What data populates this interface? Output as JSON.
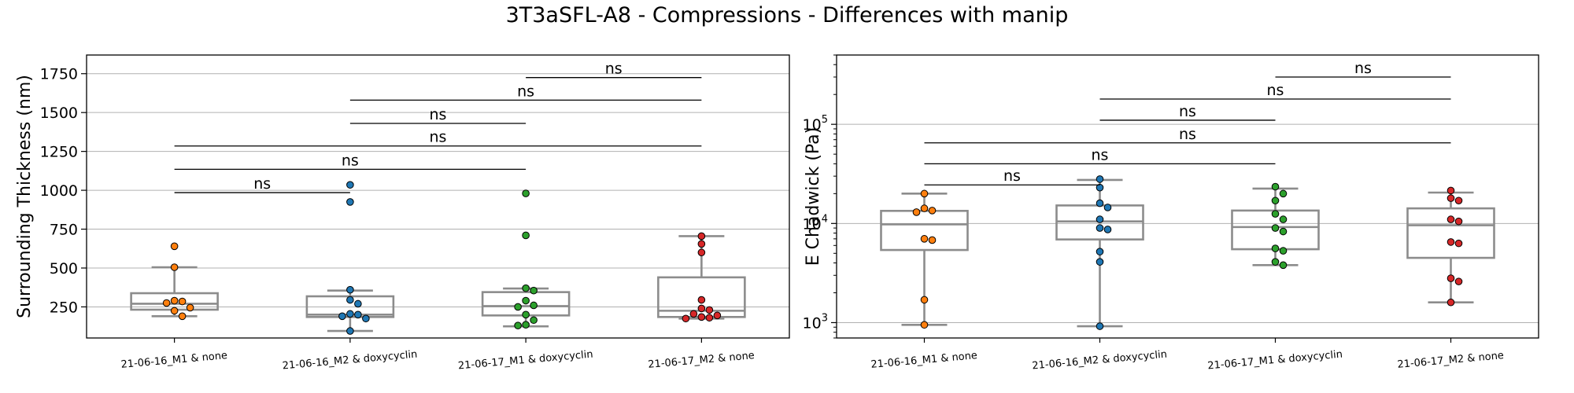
{
  "figure": {
    "title": "3T3aSFL-A8 - Compressions - Differences with manip"
  },
  "chart_data": [
    {
      "type": "box",
      "ylabel": "Surrounding Thickness (nm)",
      "yscale": "linear",
      "ylim": [
        50,
        1870
      ],
      "yticks": [
        250,
        500,
        750,
        1000,
        1250,
        1500,
        1750
      ],
      "ytick_labels": [
        "250",
        "500",
        "750",
        "1000",
        "1250",
        "1500",
        "1750"
      ],
      "grid": "horizontal",
      "categories": [
        "21-06-16_M1 & none",
        "21-06-16_M2 & doxycyclin",
        "21-06-17_M1 & doxycyclin",
        "21-06-17_M2 & none"
      ],
      "colors": [
        "#ff7f0e",
        "#1f77b4",
        "#2ca02c",
        "#d62728"
      ],
      "boxes": [
        {
          "whislo": 190,
          "q1": 232,
          "med": 270,
          "q3": 338,
          "whishi": 505
        },
        {
          "whislo": 95,
          "q1": 185,
          "med": 200,
          "q3": 318,
          "whishi": 355
        },
        {
          "whislo": 125,
          "q1": 195,
          "med": 255,
          "q3": 345,
          "whishi": 368
        },
        {
          "whislo": 175,
          "q1": 185,
          "med": 225,
          "q3": 440,
          "whishi": 705
        }
      ],
      "points": [
        [
          640,
          505,
          290,
          285,
          275,
          245,
          225,
          190
        ],
        [
          1035,
          925,
          360,
          295,
          270,
          205,
          200,
          190,
          175,
          95
        ],
        [
          980,
          710,
          370,
          355,
          290,
          260,
          250,
          200,
          165,
          135,
          130
        ],
        [
          705,
          655,
          600,
          295,
          240,
          230,
          205,
          195,
          185,
          180,
          175
        ]
      ],
      "annotations": [
        {
          "from": 0,
          "to": 1,
          "y": 985,
          "label": "ns"
        },
        {
          "from": 0,
          "to": 2,
          "y": 1135,
          "label": "ns"
        },
        {
          "from": 0,
          "to": 3,
          "y": 1285,
          "label": "ns"
        },
        {
          "from": 1,
          "to": 2,
          "y": 1430,
          "label": "ns"
        },
        {
          "from": 1,
          "to": 3,
          "y": 1580,
          "label": "ns"
        },
        {
          "from": 2,
          "to": 3,
          "y": 1725,
          "label": "ns"
        }
      ]
    },
    {
      "type": "box",
      "ylabel": "E Chadwick (Pa)",
      "yscale": "log",
      "ylim": [
        700,
        500000
      ],
      "yticks": [
        1000,
        10000,
        100000
      ],
      "ytick_labels": [
        "10",
        "10",
        "10"
      ],
      "ytick_exponents": [
        "3",
        "4",
        "5"
      ],
      "grid": "horizontal",
      "categories": [
        "21-06-16_M1 & none",
        "21-06-16_M2 & doxycyclin",
        "21-06-17_M1 & doxycyclin",
        "21-06-17_M2 & none"
      ],
      "colors": [
        "#ff7f0e",
        "#1f77b4",
        "#2ca02c",
        "#d62728"
      ],
      "boxes": [
        {
          "whislo": 950,
          "q1": 5400,
          "med": 9800,
          "q3": 13400,
          "whishi": 20000
        },
        {
          "whislo": 920,
          "q1": 6900,
          "med": 10500,
          "q3": 15200,
          "whishi": 27500
        },
        {
          "whislo": 3800,
          "q1": 5500,
          "med": 9200,
          "q3": 13500,
          "whishi": 22500
        },
        {
          "whislo": 1600,
          "q1": 4500,
          "med": 9600,
          "q3": 14200,
          "whishi": 20500
        }
      ],
      "points": [
        [
          20000,
          14200,
          13500,
          13000,
          7000,
          6800,
          1700,
          950
        ],
        [
          28000,
          23000,
          16000,
          14500,
          11000,
          9000,
          8700,
          5200,
          4100,
          920
        ],
        [
          23500,
          20000,
          17000,
          12500,
          11000,
          9000,
          8300,
          5600,
          5300,
          4100,
          3800
        ],
        [
          21500,
          18000,
          17000,
          11000,
          10500,
          6500,
          6300,
          2800,
          2600,
          1600
        ]
      ],
      "annotations": [
        {
          "from": 0,
          "to": 1,
          "y": 24500,
          "label": "ns"
        },
        {
          "from": 0,
          "to": 2,
          "y": 40000,
          "label": "ns"
        },
        {
          "from": 0,
          "to": 3,
          "y": 65000,
          "label": "ns"
        },
        {
          "from": 1,
          "to": 2,
          "y": 110000,
          "label": "ns"
        },
        {
          "from": 1,
          "to": 3,
          "y": 180000,
          "label": "ns"
        },
        {
          "from": 2,
          "to": 3,
          "y": 300000,
          "label": "ns"
        }
      ]
    }
  ]
}
